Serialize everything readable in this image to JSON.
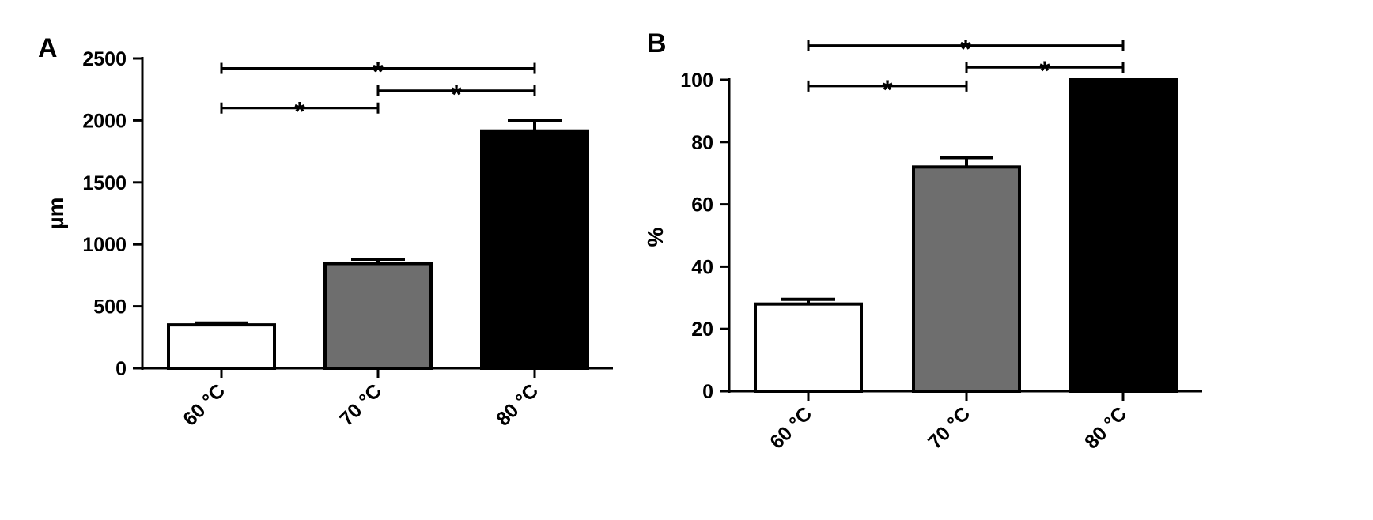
{
  "chart_data": [
    {
      "type": "bar",
      "panel": "A",
      "categories": [
        "60 °C",
        "70 °C",
        "80 °C"
      ],
      "values": [
        350,
        845,
        1915
      ],
      "errors": [
        15,
        35,
        85
      ],
      "bar_colors": [
        "#ffffff",
        "#6e6e6e",
        "#000000"
      ],
      "title": "",
      "xlabel": "",
      "ylabel": "µm",
      "ylim": [
        0,
        2500
      ],
      "yticks": [
        0,
        500,
        1000,
        1500,
        2000,
        2500
      ],
      "grid": false,
      "significance": [
        {
          "from": 0,
          "to": 1,
          "level": 2100,
          "label": "*"
        },
        {
          "from": 1,
          "to": 2,
          "level": 2240,
          "label": "*"
        },
        {
          "from": 0,
          "to": 2,
          "level": 2420,
          "label": "*"
        }
      ]
    },
    {
      "type": "bar",
      "panel": "B",
      "categories": [
        "60 °C",
        "70 °C",
        "80 °C"
      ],
      "values": [
        28,
        72,
        100
      ],
      "errors": [
        1.5,
        3,
        0
      ],
      "bar_colors": [
        "#ffffff",
        "#6e6e6e",
        "#000000"
      ],
      "title": "",
      "xlabel": "",
      "ylabel": "%",
      "ylim": [
        0,
        100
      ],
      "yticks": [
        0,
        20,
        40,
        60,
        80,
        100
      ],
      "grid": false,
      "significance": [
        {
          "from": 0,
          "to": 1,
          "level": 98,
          "label": "*"
        },
        {
          "from": 1,
          "to": 2,
          "level": 104,
          "label": "*"
        },
        {
          "from": 0,
          "to": 2,
          "level": 111,
          "label": "*"
        }
      ]
    }
  ]
}
